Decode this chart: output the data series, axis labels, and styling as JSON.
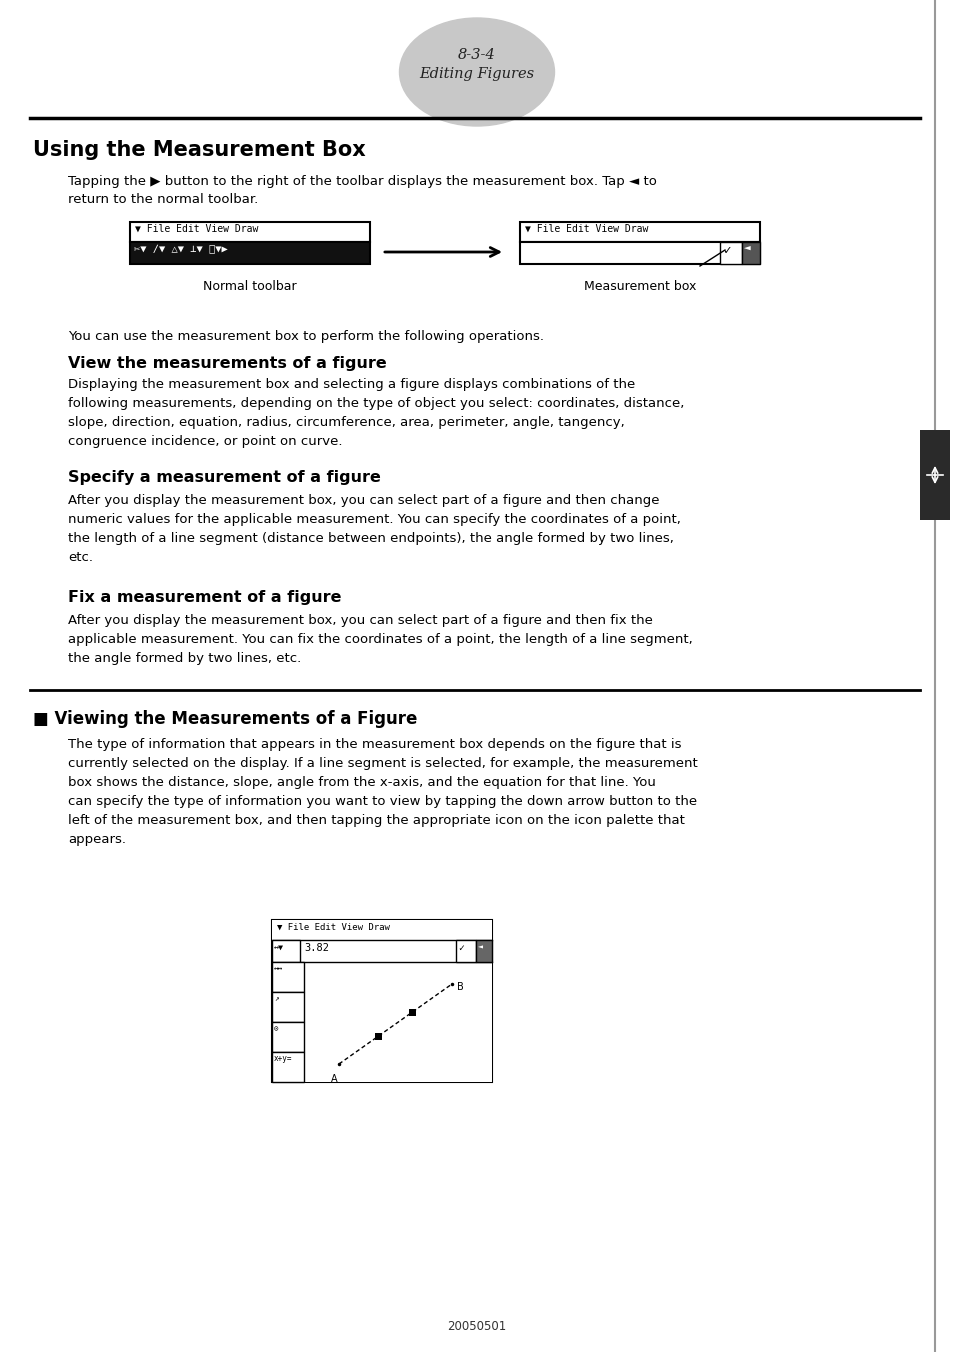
{
  "page_number": "8-3-4",
  "page_subtitle": "Editing Figures",
  "bg_color": "#ffffff",
  "title": "Using the Measurement Box",
  "section1_head": "View the measurements of a figure",
  "section1_body": "Displaying the measurement box and selecting a figure displays combinations of the\nfollowing measurements, depending on the type of object you select: coordinates, distance,\nslope, direction, equation, radius, circumference, area, perimeter, angle, tangency,\ncongruence incidence, or point on curve.",
  "section2_head": "Specify a measurement of a figure",
  "section2_body": "After you display the measurement box, you can select part of a figure and then change\nnumeric values for the applicable measurement. You can specify the coordinates of a point,\nthe length of a line segment (distance between endpoints), the angle formed by two lines,\netc.",
  "section3_head": "Fix a measurement of a figure",
  "section3_body": "After you display the measurement box, you can select part of a figure and then fix the\napplicable measurement. You can fix the coordinates of a point, the length of a line segment,\nthe angle formed by two lines, etc.",
  "section4_head": "■ Viewing the Measurements of a Figure",
  "section4_body": "The type of information that appears in the measurement box depends on the figure that is\ncurrently selected on the display. If a line segment is selected, for example, the measurement\nbox shows the distance, slope, angle from the x-axis, and the equation for that line. You\ncan specify the type of information you want to view by tapping the down arrow button to the\nleft of the measurement box, and then tapping the appropriate icon on the icon palette that\nappears.",
  "intro_text1": "Tapping the ▶ button to the right of the toolbar displays the measurement box. Tap ◄ to",
  "intro_text2": "return to the normal toolbar.",
  "toolbar_note": "You can use the measurement box to perform the following operations.",
  "normal_toolbar_label": "Normal toolbar",
  "measurement_box_label": "Measurement box",
  "footer": "20050501"
}
